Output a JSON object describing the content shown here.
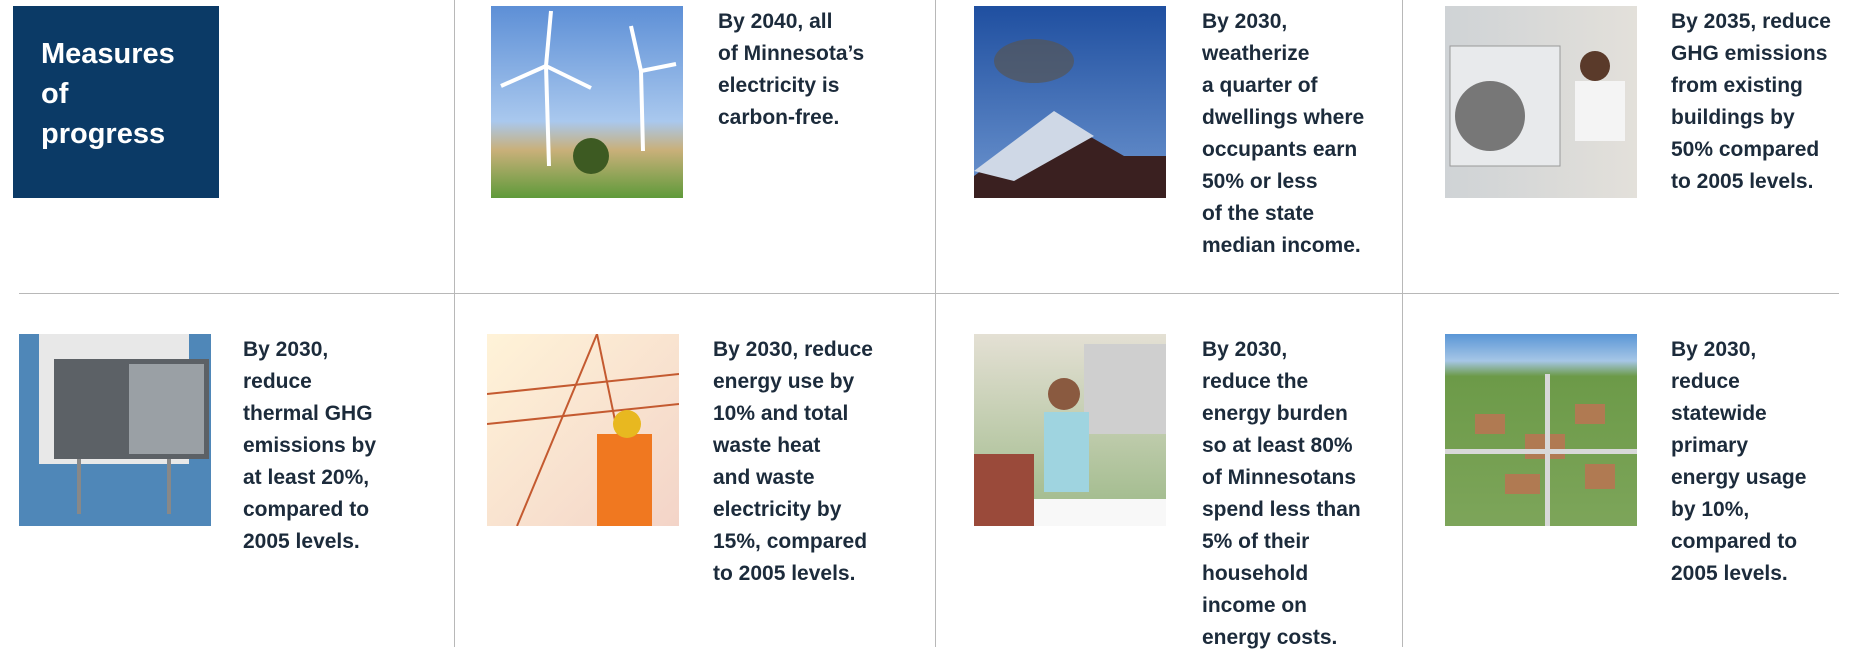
{
  "header": {
    "title": [
      "Measures",
      "of",
      "progress"
    ]
  },
  "items": [
    {
      "lines": [
        "By 2040, all",
        "of Minnesota’s",
        "electricity is",
        "carbon-free."
      ]
    },
    {
      "lines": [
        "By 2030,",
        "weatherize",
        "a quarter of",
        "dwellings where",
        "occupants earn",
        "50% or less",
        "of the state",
        "median income."
      ]
    },
    {
      "lines": [
        "By 2035, reduce",
        "GHG emissions",
        "from existing",
        "buildings by",
        "50% compared",
        "to 2005 levels."
      ]
    },
    {
      "lines": [
        "By 2030,",
        "reduce",
        "thermal GHG",
        "emissions by",
        "at least 20%,",
        "compared to",
        "2005 levels."
      ]
    },
    {
      "lines": [
        "By 2030, reduce",
        "energy use by",
        "10% and total",
        "waste heat",
        "and waste",
        "electricity by",
        "15%, compared",
        "to 2005 levels."
      ]
    },
    {
      "lines": [
        "By 2030,",
        "reduce the",
        "energy burden",
        "so at least 80%",
        "of Minnesotans",
        "spend less than",
        "5% of their",
        "household",
        "income on",
        "energy costs."
      ]
    },
    {
      "lines": [
        "By 2030,",
        "reduce",
        "statewide",
        "primary",
        "energy usage",
        "by 10%,",
        "compared to",
        "2005 levels."
      ]
    }
  ]
}
